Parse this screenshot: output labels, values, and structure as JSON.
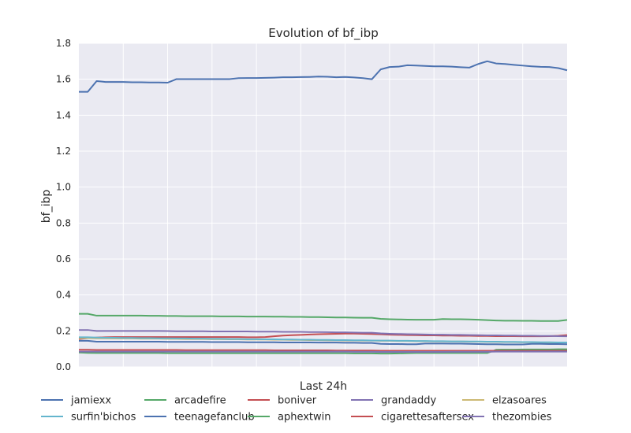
{
  "chart_data": {
    "type": "line",
    "title": "Evolution of bf_ibp",
    "xlabel": "Last 24h",
    "ylabel": "bf_ibp",
    "xlim": [
      0,
      55
    ],
    "ylim": [
      0.0,
      1.8
    ],
    "yticks": [
      "0.0",
      "0.2",
      "0.4",
      "0.6",
      "0.8",
      "1.0",
      "1.2",
      "1.4",
      "1.6",
      "1.8"
    ],
    "xtick_labels_visible": false,
    "grid": true,
    "legend_location": "bottom",
    "legend_columns": 5,
    "background_color": "#eaeaf2",
    "grid_color": "#ffffff",
    "x": [
      0,
      1,
      2,
      3,
      4,
      5,
      6,
      7,
      8,
      9,
      10,
      11,
      12,
      13,
      14,
      15,
      16,
      17,
      18,
      19,
      20,
      21,
      22,
      23,
      24,
      25,
      26,
      27,
      28,
      29,
      30,
      31,
      32,
      33,
      34,
      35,
      36,
      37,
      38,
      39,
      40,
      41,
      42,
      43,
      44,
      45,
      46,
      47,
      48,
      49,
      50,
      51,
      52,
      53,
      54,
      55
    ],
    "series": [
      {
        "name": "jamiexx",
        "color": "#4c72b0",
        "values": [
          1.53,
          1.53,
          1.59,
          1.585,
          1.585,
          1.585,
          1.583,
          1.583,
          1.582,
          1.582,
          1.581,
          1.601,
          1.601,
          1.601,
          1.601,
          1.601,
          1.601,
          1.601,
          1.606,
          1.607,
          1.607,
          1.608,
          1.609,
          1.611,
          1.611,
          1.612,
          1.613,
          1.615,
          1.614,
          1.611,
          1.613,
          1.61,
          1.606,
          1.6,
          1.655,
          1.668,
          1.67,
          1.678,
          1.676,
          1.674,
          1.672,
          1.672,
          1.67,
          1.667,
          1.665,
          1.685,
          1.7,
          1.688,
          1.685,
          1.68,
          1.676,
          1.672,
          1.669,
          1.668,
          1.662,
          1.65
        ]
      },
      {
        "name": "arcadefire",
        "color": "#55a868",
        "values": [
          0.295,
          0.295,
          0.285,
          0.285,
          0.285,
          0.285,
          0.285,
          0.285,
          0.284,
          0.284,
          0.283,
          0.283,
          0.282,
          0.282,
          0.282,
          0.282,
          0.281,
          0.281,
          0.281,
          0.28,
          0.28,
          0.28,
          0.279,
          0.279,
          0.278,
          0.278,
          0.277,
          0.277,
          0.276,
          0.275,
          0.275,
          0.274,
          0.273,
          0.273,
          0.267,
          0.265,
          0.264,
          0.263,
          0.262,
          0.262,
          0.262,
          0.266,
          0.265,
          0.265,
          0.264,
          0.262,
          0.26,
          0.258,
          0.257,
          0.257,
          0.256,
          0.256,
          0.255,
          0.255,
          0.255,
          0.261
        ]
      },
      {
        "name": "boniver",
        "color": "#c44e52",
        "values": [
          0.155,
          0.16,
          0.163,
          0.165,
          0.166,
          0.166,
          0.166,
          0.166,
          0.166,
          0.166,
          0.166,
          0.166,
          0.166,
          0.166,
          0.166,
          0.166,
          0.166,
          0.166,
          0.166,
          0.165,
          0.165,
          0.166,
          0.17,
          0.174,
          0.176,
          0.178,
          0.18,
          0.182,
          0.183,
          0.184,
          0.185,
          0.185,
          0.184,
          0.183,
          0.181,
          0.179,
          0.178,
          0.177,
          0.176,
          0.175,
          0.175,
          0.174,
          0.174,
          0.173,
          0.173,
          0.172,
          0.172,
          0.171,
          0.171,
          0.171,
          0.17,
          0.17,
          0.17,
          0.171,
          0.173,
          0.177
        ]
      },
      {
        "name": "grandaddy",
        "color": "#8172b2",
        "values": [
          0.205,
          0.205,
          0.2,
          0.2,
          0.2,
          0.2,
          0.2,
          0.2,
          0.2,
          0.2,
          0.199,
          0.198,
          0.198,
          0.198,
          0.198,
          0.197,
          0.197,
          0.197,
          0.197,
          0.197,
          0.196,
          0.196,
          0.196,
          0.195,
          0.195,
          0.195,
          0.194,
          0.194,
          0.193,
          0.192,
          0.192,
          0.191,
          0.19,
          0.19,
          0.186,
          0.184,
          0.183,
          0.182,
          0.181,
          0.18,
          0.179,
          0.179,
          0.178,
          0.178,
          0.177,
          0.176,
          0.175,
          0.175,
          0.174,
          0.174,
          0.173,
          0.173,
          0.172,
          0.172,
          0.171,
          0.17
        ]
      },
      {
        "name": "elzasoares",
        "color": "#ccb974",
        "values": [
          0.16,
          0.16,
          0.159,
          0.159,
          0.158,
          0.158,
          0.158,
          0.157,
          0.157,
          0.157,
          0.156,
          0.156,
          0.155,
          0.155,
          0.155,
          0.154,
          0.154,
          0.153,
          0.153,
          0.152,
          0.152,
          0.152,
          0.151,
          0.151,
          0.15,
          0.15,
          0.149,
          0.149,
          0.148,
          0.148,
          0.147,
          0.147,
          0.146,
          0.146,
          0.145,
          0.145,
          0.144,
          0.144,
          0.143,
          0.143,
          0.142,
          0.142,
          0.141,
          0.141,
          0.14,
          0.14,
          0.139,
          0.139,
          0.138,
          0.138,
          0.137,
          0.137,
          0.136,
          0.136,
          0.135,
          0.135
        ]
      },
      {
        "name": "surfin'bichos",
        "color": "#64b5cd",
        "values": [
          0.165,
          0.165,
          0.163,
          0.162,
          0.162,
          0.161,
          0.161,
          0.16,
          0.16,
          0.159,
          0.159,
          0.158,
          0.158,
          0.157,
          0.157,
          0.156,
          0.156,
          0.155,
          0.155,
          0.154,
          0.154,
          0.153,
          0.153,
          0.152,
          0.152,
          0.151,
          0.151,
          0.15,
          0.15,
          0.149,
          0.149,
          0.148,
          0.148,
          0.147,
          0.146,
          0.146,
          0.145,
          0.145,
          0.144,
          0.144,
          0.143,
          0.143,
          0.142,
          0.142,
          0.141,
          0.141,
          0.14,
          0.14,
          0.139,
          0.139,
          0.138,
          0.138,
          0.137,
          0.137,
          0.136,
          0.136
        ]
      },
      {
        "name": "teenagefanclub",
        "color": "#4c72b0",
        "values": [
          0.145,
          0.145,
          0.14,
          0.14,
          0.14,
          0.14,
          0.14,
          0.14,
          0.14,
          0.14,
          0.139,
          0.139,
          0.139,
          0.139,
          0.139,
          0.138,
          0.138,
          0.138,
          0.138,
          0.137,
          0.137,
          0.137,
          0.137,
          0.136,
          0.136,
          0.136,
          0.136,
          0.135,
          0.135,
          0.135,
          0.134,
          0.134,
          0.133,
          0.133,
          0.128,
          0.127,
          0.127,
          0.126,
          0.126,
          0.13,
          0.13,
          0.13,
          0.129,
          0.129,
          0.128,
          0.127,
          0.126,
          0.126,
          0.125,
          0.125,
          0.125,
          0.128,
          0.128,
          0.127,
          0.127,
          0.126
        ]
      },
      {
        "name": "aphextwin",
        "color": "#55a868",
        "values": [
          0.08,
          0.078,
          0.077,
          0.077,
          0.077,
          0.077,
          0.077,
          0.077,
          0.077,
          0.077,
          0.076,
          0.076,
          0.076,
          0.076,
          0.076,
          0.076,
          0.076,
          0.076,
          0.076,
          0.076,
          0.076,
          0.076,
          0.076,
          0.076,
          0.076,
          0.076,
          0.076,
          0.076,
          0.076,
          0.076,
          0.076,
          0.075,
          0.075,
          0.075,
          0.074,
          0.074,
          0.075,
          0.076,
          0.077,
          0.077,
          0.077,
          0.077,
          0.077,
          0.077,
          0.077,
          0.077,
          0.077,
          0.095,
          0.096,
          0.096,
          0.097,
          0.097,
          0.097,
          0.097,
          0.098,
          0.098
        ]
      },
      {
        "name": "cigarettesaftersex",
        "color": "#c44e52",
        "values": [
          0.095,
          0.095,
          0.094,
          0.094,
          0.094,
          0.094,
          0.094,
          0.094,
          0.094,
          0.094,
          0.094,
          0.094,
          0.093,
          0.093,
          0.093,
          0.093,
          0.093,
          0.093,
          0.093,
          0.093,
          0.093,
          0.093,
          0.092,
          0.092,
          0.092,
          0.092,
          0.092,
          0.092,
          0.092,
          0.091,
          0.091,
          0.091,
          0.091,
          0.091,
          0.09,
          0.09,
          0.09,
          0.09,
          0.09,
          0.09,
          0.09,
          0.09,
          0.09,
          0.09,
          0.09,
          0.09,
          0.09,
          0.09,
          0.09,
          0.09,
          0.09,
          0.09,
          0.09,
          0.09,
          0.09,
          0.09
        ]
      },
      {
        "name": "thezombies",
        "color": "#8172b2",
        "values": [
          0.085,
          0.085,
          0.085,
          0.085,
          0.085,
          0.085,
          0.085,
          0.085,
          0.085,
          0.085,
          0.085,
          0.085,
          0.085,
          0.085,
          0.085,
          0.085,
          0.085,
          0.085,
          0.085,
          0.085,
          0.085,
          0.085,
          0.085,
          0.085,
          0.085,
          0.085,
          0.085,
          0.085,
          0.085,
          0.085,
          0.085,
          0.084,
          0.084,
          0.084,
          0.083,
          0.083,
          0.083,
          0.083,
          0.083,
          0.083,
          0.083,
          0.083,
          0.084,
          0.084,
          0.084,
          0.084,
          0.084,
          0.085,
          0.085,
          0.085,
          0.085,
          0.085,
          0.085,
          0.085,
          0.085,
          0.085
        ]
      }
    ]
  }
}
